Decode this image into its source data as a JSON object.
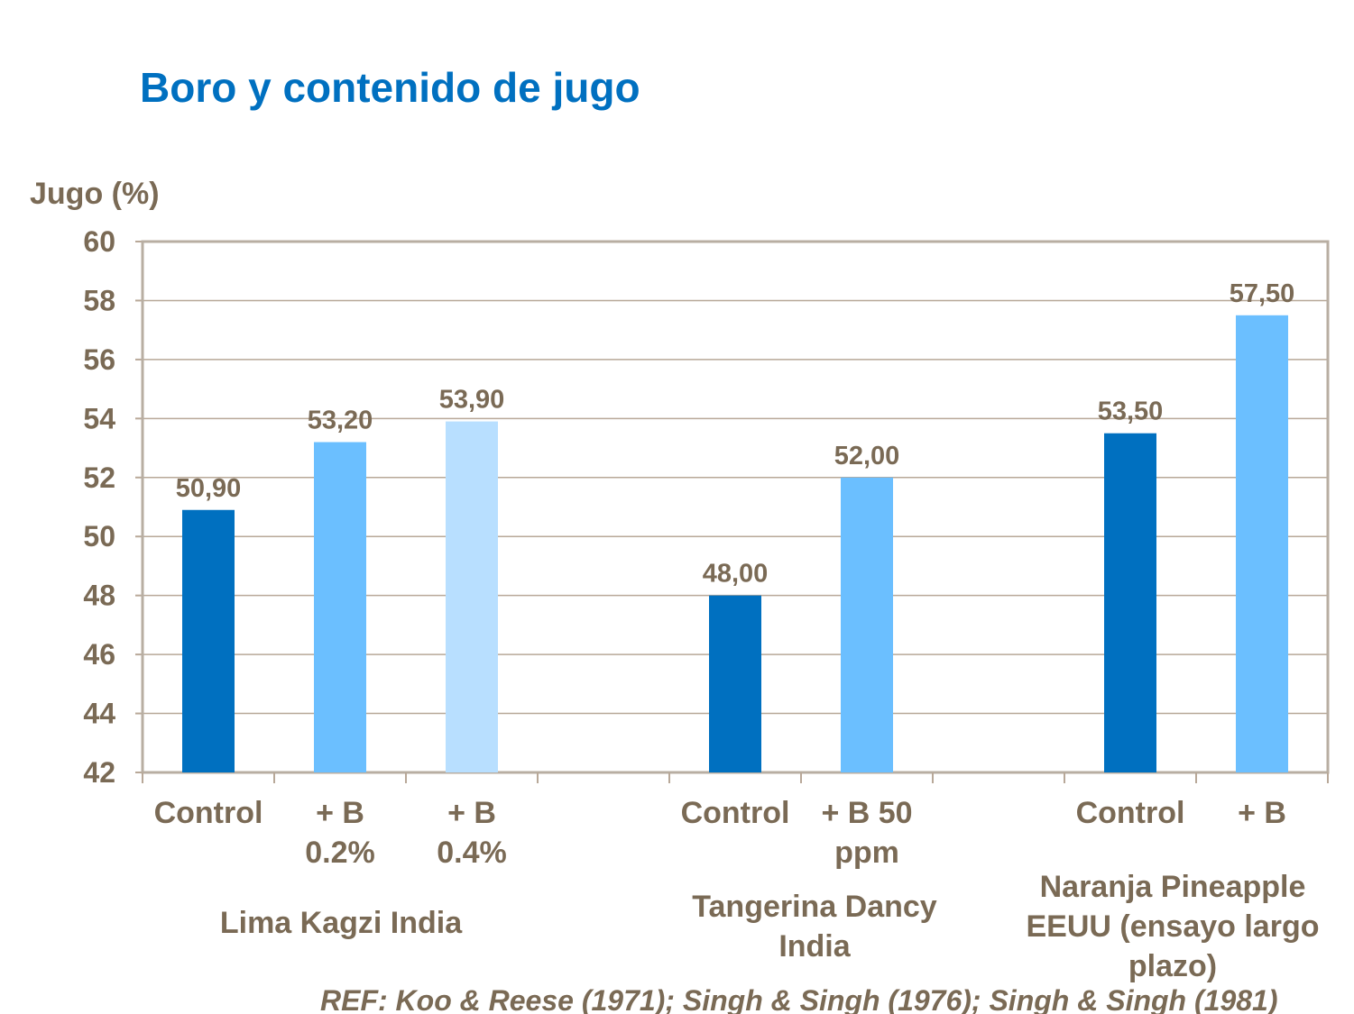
{
  "title": "Boro y contenido de jugo",
  "chart_data": {
    "type": "bar",
    "title": "Boro y contenido de jugo",
    "ylabel": "Jugo (%)",
    "ylim": [
      42,
      60
    ],
    "yticks": [
      "42",
      "44",
      "46",
      "48",
      "50",
      "52",
      "54",
      "56",
      "58",
      "60"
    ],
    "grid": true,
    "categories": [
      "Control",
      "+ B 0.2%",
      "+ B 0.4%",
      "",
      "Control",
      "+ B 50 ppm",
      "",
      "Control",
      "+ B"
    ],
    "values": [
      50.9,
      53.2,
      53.9,
      null,
      48.0,
      52.0,
      null,
      53.5,
      57.5
    ],
    "data_labels": [
      "50,90",
      "53,20",
      "53,90",
      "",
      "48,00",
      "52,00",
      "",
      "53,50",
      "57,50"
    ],
    "bar_colors": [
      "#0070c0",
      "#6bbfff",
      "#b8dfff",
      null,
      "#0070c0",
      "#6bbfff",
      null,
      "#0070c0",
      "#6bbfff"
    ],
    "groups": [
      {
        "label": "Lima Kagzi India"
      },
      {
        "label": "Tangerina Dancy India"
      },
      {
        "label": "Naranja Pineapple EEUU (ensayo largo plazo)"
      }
    ]
  },
  "reference": "REF: Koo & Reese (1971); Singh & Singh (1976); Singh & Singh (1981)"
}
